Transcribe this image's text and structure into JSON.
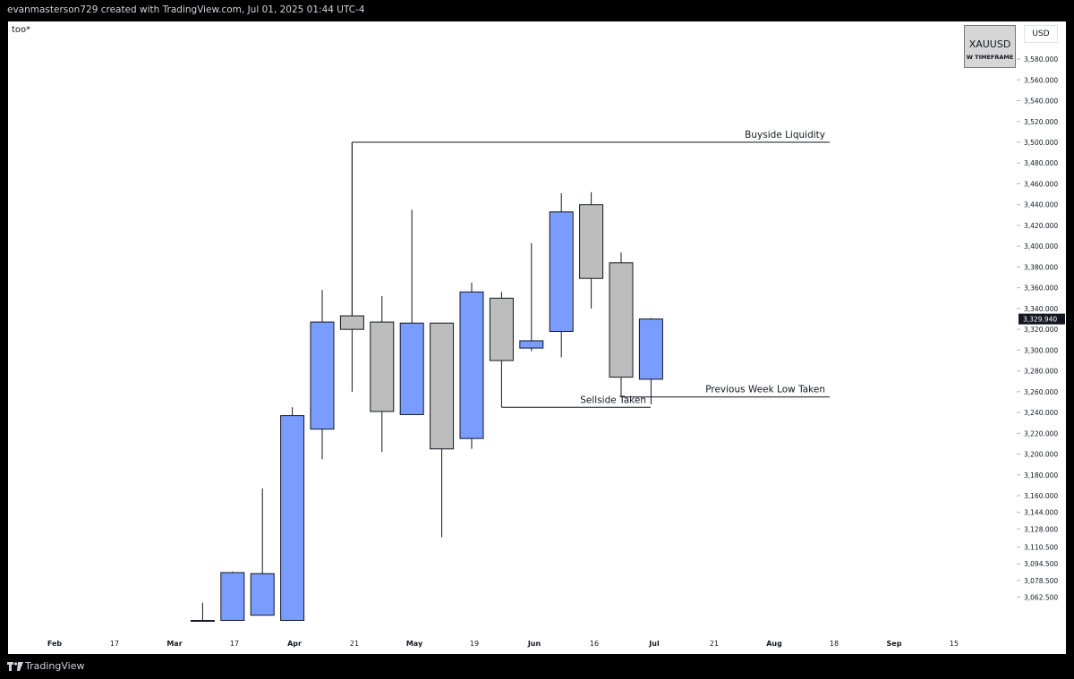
{
  "header": {
    "attribution": "evanmasterson729 created with TradingView.com, Jul 01, 2025 01:44 UTC-4"
  },
  "chart_header": {
    "symbol_tag": "too*",
    "currency": "USD"
  },
  "watermark": {
    "symbol": "XAUUSD",
    "timeframe": "W TIMEFRAME"
  },
  "footer": {
    "brand": "TradingView"
  },
  "colors": {
    "bull": "#7b9cff",
    "bear": "#bdbdbd",
    "wick": "#131722",
    "price_label_bg": "#131722"
  },
  "chart_data": {
    "type": "candlestick",
    "symbol": "XAUUSD",
    "timeframe": "W",
    "ylim": [
      3050,
      3600
    ],
    "y_ticks": [
      {
        "v": 3062.5,
        "label": "3,062.500"
      },
      {
        "v": 3078.5,
        "label": "3,078.500"
      },
      {
        "v": 3094.5,
        "label": "3,094.500"
      },
      {
        "v": 3110.5,
        "label": "3,110.500"
      },
      {
        "v": 3128,
        "label": "3,128.000"
      },
      {
        "v": 3144,
        "label": "3,144.000"
      },
      {
        "v": 3160,
        "label": "3,160.000"
      },
      {
        "v": 3180,
        "label": "3,180.000"
      },
      {
        "v": 3200,
        "label": "3,200.000"
      },
      {
        "v": 3220,
        "label": "3,220.000"
      },
      {
        "v": 3240,
        "label": "3,240.000"
      },
      {
        "v": 3260,
        "label": "3,260.000"
      },
      {
        "v": 3280,
        "label": "3,280.000"
      },
      {
        "v": 3300,
        "label": "3,300.000"
      },
      {
        "v": 3320,
        "label": "3,320.000"
      },
      {
        "v": 3340,
        "label": "3,340.000"
      },
      {
        "v": 3360,
        "label": "3,360.000"
      },
      {
        "v": 3380,
        "label": "3,380.000"
      },
      {
        "v": 3400,
        "label": "3,400.000"
      },
      {
        "v": 3420,
        "label": "3,420.000"
      },
      {
        "v": 3440,
        "label": "3,440.000"
      },
      {
        "v": 3460,
        "label": "3,460.000"
      },
      {
        "v": 3480,
        "label": "3,480.000"
      },
      {
        "v": 3500,
        "label": "3,500.000"
      },
      {
        "v": 3520,
        "label": "3,520.000"
      },
      {
        "v": 3540,
        "label": "3,540.000"
      },
      {
        "v": 3560,
        "label": "3,560.000"
      },
      {
        "v": 3580,
        "label": "3,580.000"
      }
    ],
    "x_ticks": [
      {
        "label": "Feb",
        "bold": true
      },
      {
        "label": "17",
        "bold": false
      },
      {
        "label": "Mar",
        "bold": true
      },
      {
        "label": "17",
        "bold": false
      },
      {
        "label": "Apr",
        "bold": true
      },
      {
        "label": "21",
        "bold": false
      },
      {
        "label": "May",
        "bold": true
      },
      {
        "label": "19",
        "bold": false
      },
      {
        "label": "Jun",
        "bold": true
      },
      {
        "label": "16",
        "bold": false
      },
      {
        "label": "Jul",
        "bold": true
      },
      {
        "label": "21",
        "bold": false
      },
      {
        "label": "Aug",
        "bold": true
      },
      {
        "label": "18",
        "bold": false
      },
      {
        "label": "Sep",
        "bold": true
      },
      {
        "label": "15",
        "bold": false
      }
    ],
    "candles": [
      {
        "i": 6,
        "o": 3040,
        "h": 3057,
        "l": 3040,
        "c": 3040
      },
      {
        "i": 7,
        "o": 3040,
        "h": 3087,
        "l": 3040,
        "c": 3086
      },
      {
        "i": 8,
        "o": 3045,
        "h": 3167,
        "l": 3045,
        "c": 3085
      },
      {
        "i": 9,
        "o": 3040,
        "h": 3245,
        "l": 3040,
        "c": 3237
      },
      {
        "i": 10,
        "o": 3224,
        "h": 3358,
        "l": 3195,
        "c": 3327
      },
      {
        "i": 11,
        "o": 3333,
        "h": 3500,
        "l": 3260,
        "c": 3320
      },
      {
        "i": 12,
        "o": 3327,
        "h": 3352,
        "l": 3202,
        "c": 3241
      },
      {
        "i": 13,
        "o": 3238,
        "h": 3435,
        "l": 3238,
        "c": 3326
      },
      {
        "i": 14,
        "o": 3326,
        "h": 3326,
        "l": 3120,
        "c": 3205
      },
      {
        "i": 15,
        "o": 3215,
        "h": 3365,
        "l": 3205,
        "c": 3356
      },
      {
        "i": 16,
        "o": 3350,
        "h": 3356,
        "l": 3290,
        "c": 3290
      },
      {
        "i": 17,
        "o": 3302,
        "h": 3403,
        "l": 3299,
        "c": 3309
      },
      {
        "i": 18,
        "o": 3318,
        "h": 3451,
        "l": 3293,
        "c": 3433
      },
      {
        "i": 19,
        "o": 3440,
        "h": 3452,
        "l": 3340,
        "c": 3369
      },
      {
        "i": 20,
        "o": 3384,
        "h": 3394,
        "l": 3264,
        "c": 3274
      },
      {
        "i": 21,
        "o": 3272,
        "h": 3331,
        "l": 3248,
        "c": 3329.94
      }
    ],
    "current_price": {
      "value": 3329.94,
      "label": "3,329.940"
    },
    "annotations": [
      {
        "label": "Buyside Liquidity",
        "price": 3500
      },
      {
        "label": "Sellside Taken",
        "price": 3245
      },
      {
        "label": "Previous Week Low Taken",
        "price": 3255
      }
    ]
  }
}
